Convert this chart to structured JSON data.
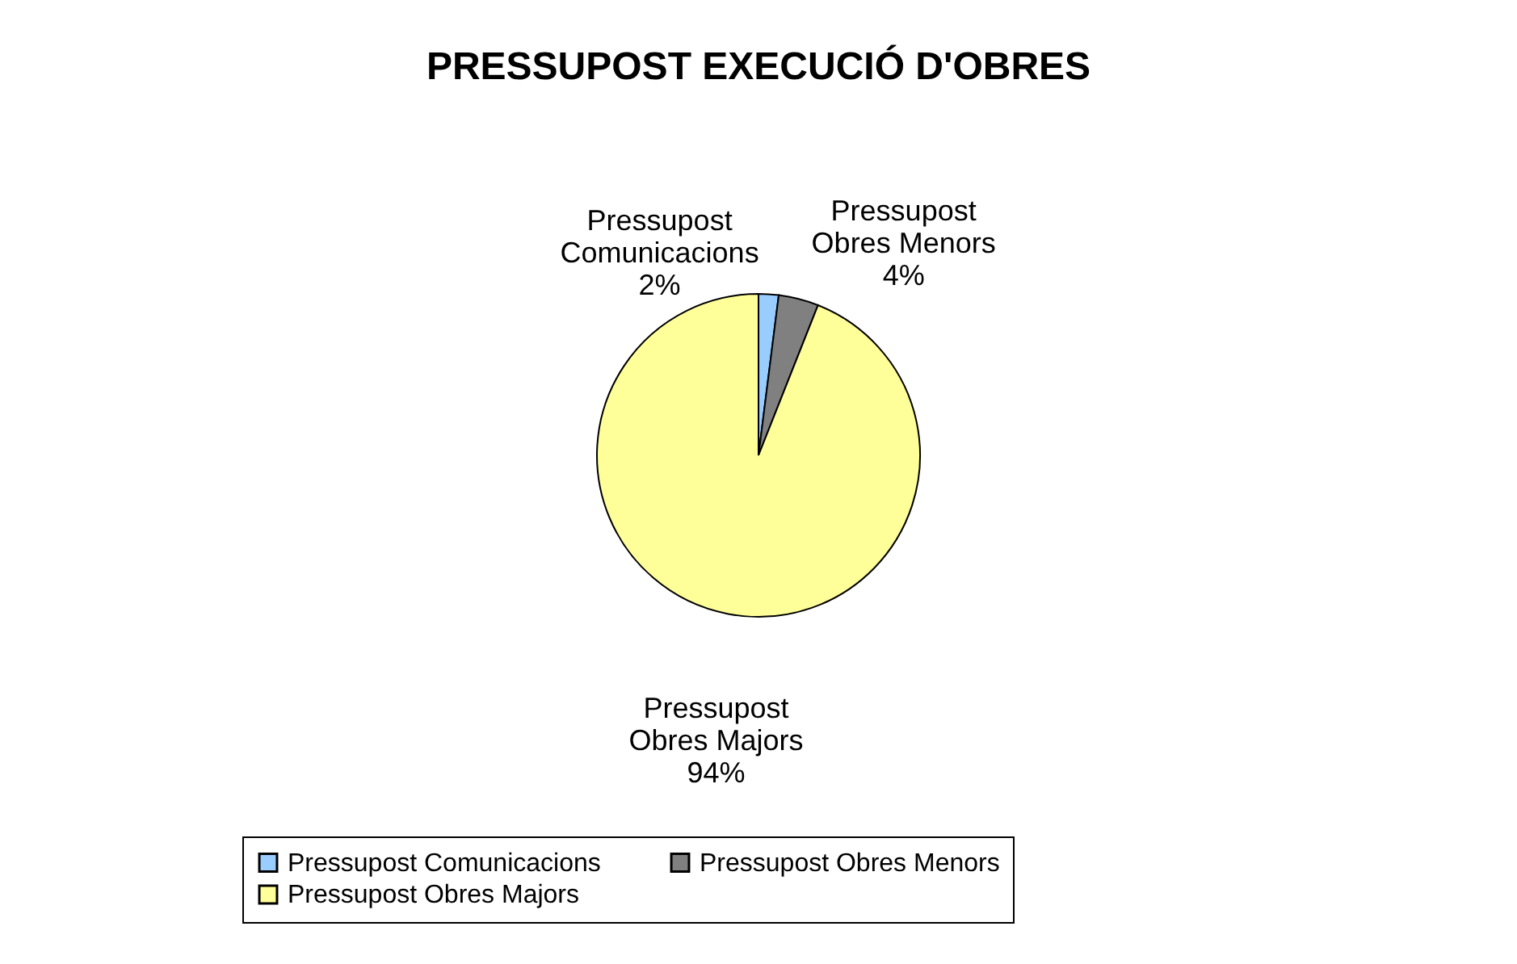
{
  "chart_data": {
    "type": "pie",
    "title": "PRESSUPOST EXECUCIÓ D'OBRES",
    "categories": [
      "Pressupost Comunicacions",
      "Pressupost Obres Menors",
      "Pressupost Obres Majors"
    ],
    "values": [
      2,
      4,
      94
    ],
    "value_labels": [
      "2%",
      "4%",
      "94%"
    ],
    "colors": [
      "#99ccff",
      "#808080",
      "#ffff99"
    ],
    "legend": "bottom"
  }
}
